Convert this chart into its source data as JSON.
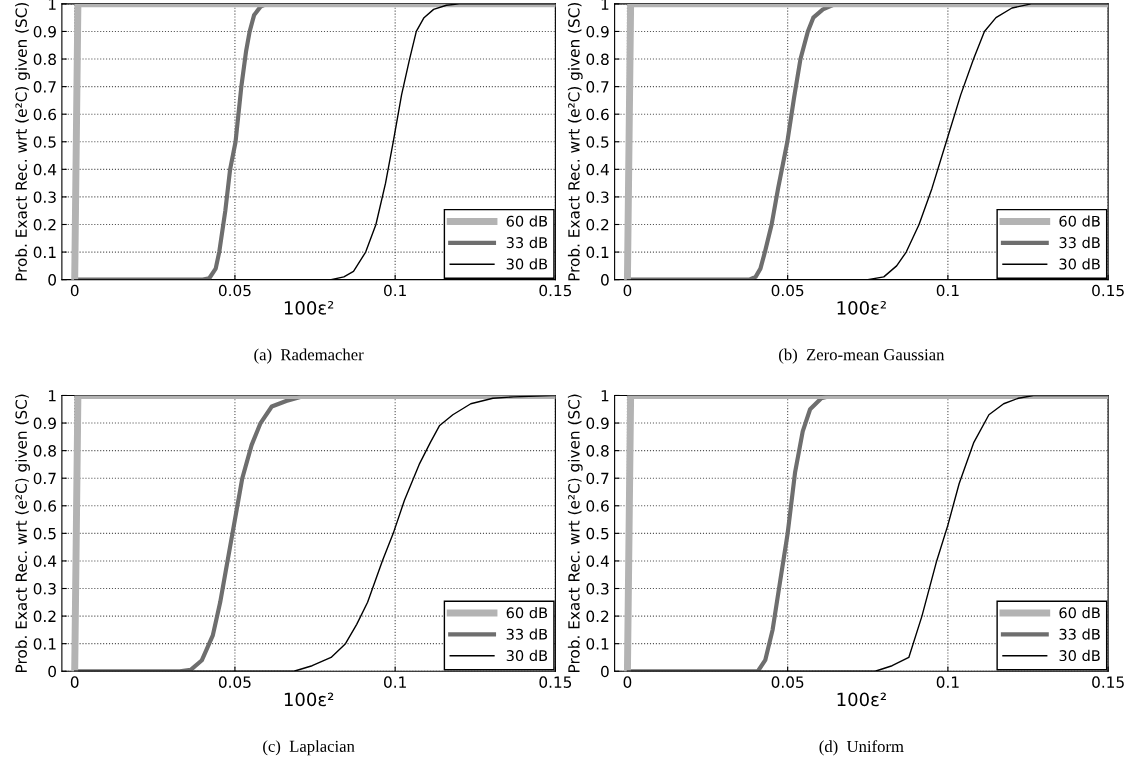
{
  "chart_data": [
    {
      "type": "line",
      "xlabel": "100ε²",
      "ylabel": "Prob. Exact Rec. wrt (e²C) given (SC)",
      "annotations": [
        "(a)  Rademacher"
      ],
      "xlim": [
        -0.004,
        0.15
      ],
      "xticks": [
        0,
        0.05,
        0.1,
        0.15
      ],
      "ylim": [
        0,
        1
      ],
      "yticks": [
        0,
        0.1,
        0.2,
        0.3,
        0.4,
        0.5,
        0.6,
        0.7,
        0.8,
        0.9,
        1
      ],
      "grid": true,
      "legend": "bottom right",
      "line_style": "solid",
      "series": [
        {
          "name": "60 dB",
          "color": "#b3b3b3",
          "x": [
            0,
            0.001,
            0.15
          ],
          "values": [
            0,
            1,
            1
          ]
        },
        {
          "name": "33 dB",
          "color": "#6e6e6e",
          "x": [
            0,
            0.04,
            0.042,
            0.044,
            0.0451,
            0.047,
            0.0485,
            0.0502,
            0.052,
            0.0535,
            0.0546,
            0.056,
            0.058,
            0.06,
            0.15
          ],
          "values": [
            0,
            0,
            0.005,
            0.04,
            0.1,
            0.25,
            0.4,
            0.5,
            0.7,
            0.83,
            0.9,
            0.96,
            0.99,
            1,
            1
          ]
        },
        {
          "name": "30 dB",
          "color": "#000000",
          "x": [
            0,
            0.08,
            0.084,
            0.087,
            0.0908,
            0.094,
            0.097,
            0.0994,
            0.102,
            0.1045,
            0.1066,
            0.109,
            0.112,
            0.116,
            0.12,
            0.15
          ],
          "values": [
            0,
            0,
            0.01,
            0.03,
            0.1,
            0.2,
            0.35,
            0.5,
            0.67,
            0.8,
            0.9,
            0.95,
            0.98,
            0.995,
            1,
            1
          ]
        }
      ]
    },
    {
      "type": "line",
      "xlabel": "100ε²",
      "ylabel": "Prob. Exact Rec. wrt (e²C) given (SC)",
      "annotations": [
        "(b)  Zero-mean Gaussian"
      ],
      "xlim": [
        -0.004,
        0.15
      ],
      "xticks": [
        0,
        0.05,
        0.1,
        0.15
      ],
      "ylim": [
        0,
        1
      ],
      "yticks": [
        0,
        0.1,
        0.2,
        0.3,
        0.4,
        0.5,
        0.6,
        0.7,
        0.8,
        0.9,
        1
      ],
      "grid": true,
      "legend": "bottom right",
      "line_style": "solid",
      "series": [
        {
          "name": "60 dB",
          "color": "#b3b3b3",
          "x": [
            0,
            0.001,
            0.15
          ],
          "values": [
            0,
            1,
            1
          ]
        },
        {
          "name": "33 dB",
          "color": "#6e6e6e",
          "x": [
            0,
            0.038,
            0.04,
            0.0415,
            0.0429,
            0.045,
            0.047,
            0.0499,
            0.052,
            0.054,
            0.0563,
            0.058,
            0.061,
            0.065,
            0.15
          ],
          "values": [
            0,
            0,
            0.01,
            0.04,
            0.1,
            0.2,
            0.33,
            0.5,
            0.66,
            0.8,
            0.9,
            0.95,
            0.98,
            1,
            1
          ]
        },
        {
          "name": "30 dB",
          "color": "#000000",
          "x": [
            0,
            0.075,
            0.08,
            0.084,
            0.087,
            0.091,
            0.095,
            0.0995,
            0.104,
            0.108,
            0.1114,
            0.115,
            0.12,
            0.126,
            0.15
          ],
          "values": [
            0,
            0,
            0.01,
            0.05,
            0.1,
            0.2,
            0.33,
            0.5,
            0.67,
            0.8,
            0.9,
            0.95,
            0.985,
            1,
            1
          ]
        }
      ]
    },
    {
      "type": "line",
      "xlabel": "100ε²",
      "ylabel": "Prob. Exact Rec. wrt (e²C) given (SC)",
      "annotations": [
        "(c)  Laplacian"
      ],
      "xlim": [
        -0.004,
        0.15
      ],
      "xticks": [
        0,
        0.05,
        0.1,
        0.15
      ],
      "ylim": [
        0,
        1
      ],
      "yticks": [
        0,
        0.1,
        0.2,
        0.3,
        0.4,
        0.5,
        0.6,
        0.7,
        0.8,
        0.9,
        1
      ],
      "grid": true,
      "legend": "bottom right",
      "line_style": "solid",
      "series": [
        {
          "name": "60 dB",
          "color": "#b3b3b3",
          "x": [
            0,
            0.001,
            0.15
          ],
          "values": [
            0,
            1,
            1
          ]
        },
        {
          "name": "33 dB",
          "color": "#6e6e6e",
          "x": [
            0,
            0.0328,
            0.0362,
            0.0397,
            0.0431,
            0.0454,
            0.0477,
            0.05,
            0.0523,
            0.0552,
            0.058,
            0.0615,
            0.066,
            0.0707,
            0.08,
            0.15
          ],
          "values": [
            0,
            0,
            0.005,
            0.04,
            0.13,
            0.25,
            0.4,
            0.55,
            0.7,
            0.82,
            0.9,
            0.96,
            0.98,
            0.995,
            1,
            1
          ]
        },
        {
          "name": "30 dB",
          "color": "#000000",
          "x": [
            0,
            0.0684,
            0.0741,
            0.08,
            0.0845,
            0.088,
            0.0914,
            0.096,
            0.0994,
            0.1029,
            0.1075,
            0.111,
            0.1138,
            0.118,
            0.1236,
            0.1305,
            0.137,
            0.149,
            0.15
          ],
          "values": [
            0,
            0,
            0.02,
            0.05,
            0.1,
            0.17,
            0.25,
            0.4,
            0.5,
            0.62,
            0.75,
            0.83,
            0.89,
            0.93,
            0.97,
            0.99,
            0.995,
            1,
            1
          ]
        }
      ]
    },
    {
      "type": "line",
      "xlabel": "100ε²",
      "ylabel": "Prob. Exact Rec. wrt (e²C) given (SC)",
      "annotations": [
        "(d)  Uniform"
      ],
      "xlim": [
        -0.004,
        0.15
      ],
      "xticks": [
        0,
        0.05,
        0.1,
        0.15
      ],
      "ylim": [
        0,
        1
      ],
      "yticks": [
        0,
        0.1,
        0.2,
        0.3,
        0.4,
        0.5,
        0.6,
        0.7,
        0.8,
        0.9,
        1
      ],
      "grid": true,
      "legend": "bottom right",
      "line_style": "solid",
      "series": [
        {
          "name": "60 dB",
          "color": "#b3b3b3",
          "x": [
            0,
            0.001,
            0.15
          ],
          "values": [
            0,
            1,
            1
          ]
        },
        {
          "name": "33 dB",
          "color": "#6e6e6e",
          "x": [
            0,
            0.0407,
            0.043,
            0.0453,
            0.0477,
            0.05,
            0.0523,
            0.0547,
            0.057,
            0.0605,
            0.064,
            0.15
          ],
          "values": [
            0,
            0,
            0.04,
            0.15,
            0.33,
            0.5,
            0.72,
            0.87,
            0.95,
            0.99,
            1,
            1
          ]
        },
        {
          "name": "30 dB",
          "color": "#000000",
          "x": [
            0,
            0.0773,
            0.0826,
            0.0878,
            0.0919,
            0.0965,
            0.1,
            0.1035,
            0.1081,
            0.1128,
            0.1174,
            0.122,
            0.1267,
            0.15
          ],
          "values": [
            0,
            0,
            0.02,
            0.05,
            0.2,
            0.4,
            0.53,
            0.68,
            0.83,
            0.93,
            0.97,
            0.99,
            1,
            1
          ]
        }
      ]
    }
  ]
}
